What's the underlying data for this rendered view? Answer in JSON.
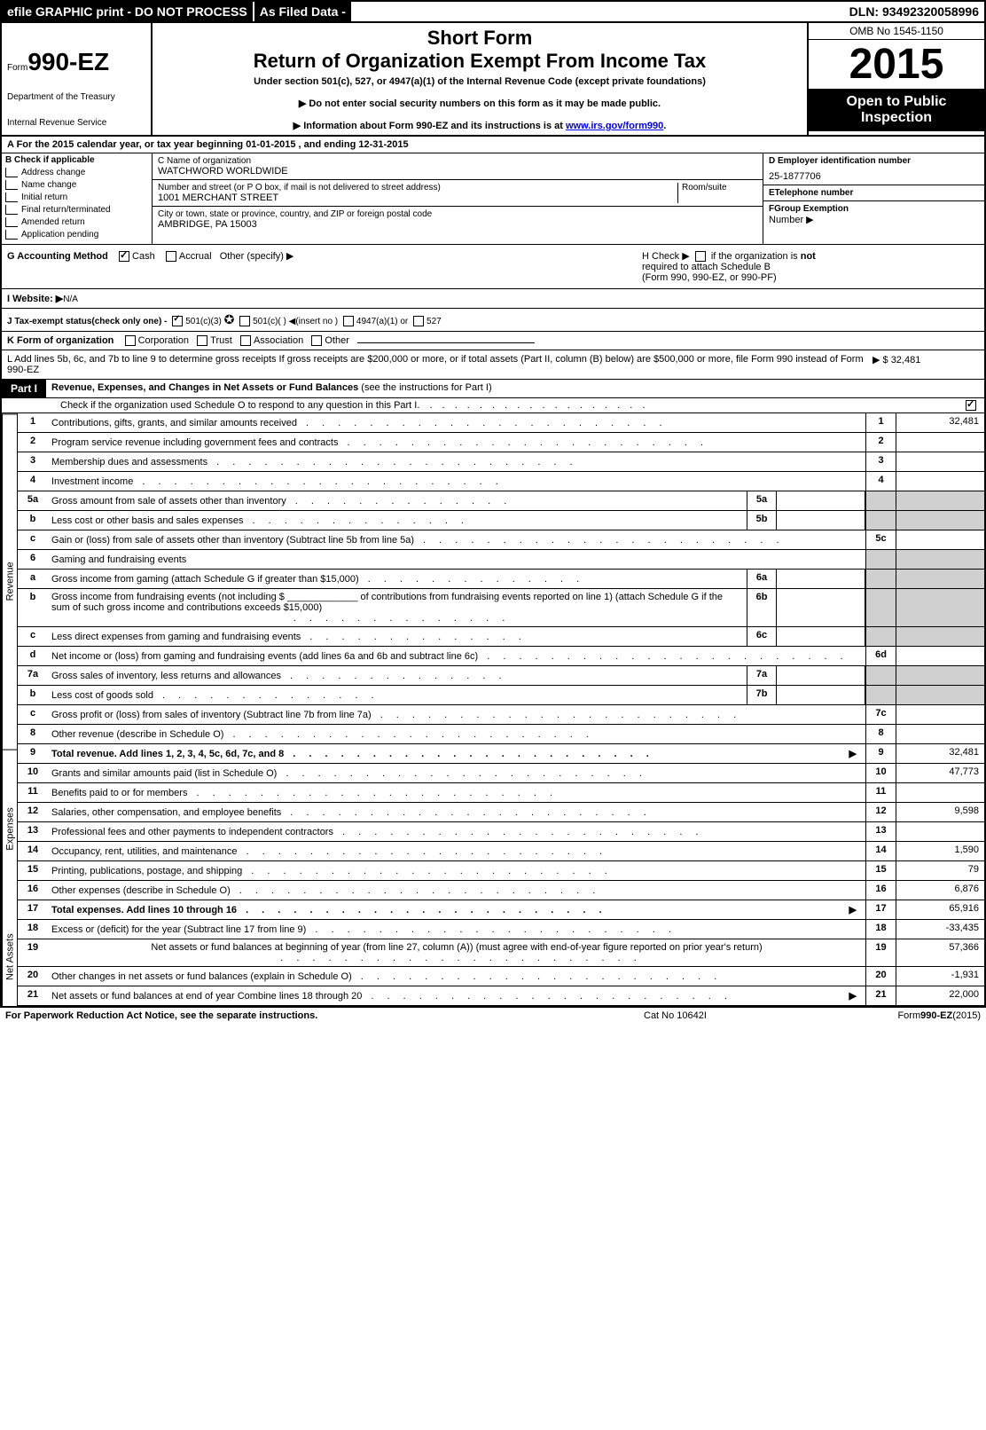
{
  "top": {
    "left": "efile GRAPHIC print - DO NOT PROCESS",
    "mid": "As Filed Data -",
    "dln": "DLN: 93492320058996"
  },
  "header": {
    "form_prefix": "Form",
    "form_number": "990-EZ",
    "dept1": "Department of the Treasury",
    "dept2": "Internal Revenue Service",
    "short": "Short Form",
    "title": "Return of Organization Exempt From Income Tax",
    "subtitle": "Under section 501(c), 527, or 4947(a)(1) of the Internal Revenue Code (except private foundations)",
    "note1": "▶ Do not enter social security numbers on this form as it may be made public.",
    "note2_pre": "▶ Information about Form 990-EZ and its instructions is at ",
    "note2_link": "www.irs.gov/form990",
    "note2_post": ".",
    "omb": "OMB No 1545-1150",
    "year": "2015",
    "inspect1": "Open to Public",
    "inspect2": "Inspection"
  },
  "lineA": "A  For the 2015 calendar year, or tax year beginning 01-01-2015              , and ending 12-31-2015",
  "colB": {
    "header": "B  Check if applicable",
    "items": [
      "Address change",
      "Name change",
      "Initial return",
      "Final return/terminated",
      "Amended return",
      "Application pending"
    ]
  },
  "colC": {
    "name_lbl": "C Name of organization",
    "name_val": "WATCHWORD WORLDWIDE",
    "addr_lbl": "Number and street (or P O box, if mail is not delivered to street address)",
    "room_lbl": "Room/suite",
    "addr_val": "1001 MERCHANT STREET",
    "city_lbl": "City or town, state or province, country, and ZIP or foreign postal code",
    "city_val": "AMBRIDGE, PA 15003"
  },
  "colD": {
    "d_lbl": "D Employer identification number",
    "d_val": "25-1877706",
    "e_lbl": "ETelephone number",
    "f_lbl": "FGroup Exemption",
    "f_lbl2": "Number    ▶"
  },
  "gh": {
    "g_lbl": "G Accounting Method",
    "g_cash": "Cash",
    "g_accr": "Accrual",
    "g_other": "Other (specify) ▶",
    "h_text1": "H  Check ▶ ",
    "h_text2": " if the organization is ",
    "h_not": "not",
    "h_text3": "required to attach Schedule B",
    "h_text4": "(Form 990, 990-EZ, or 990-PF)"
  },
  "lineI": {
    "lbl": "I Website: ▶",
    "val": "N/A"
  },
  "lineJ": "J Tax-exempt status(check only one) - ",
  "lineJ_opts": {
    "a": "501(c)(3)",
    "b": "501(c)(  ) ◀(insert no )",
    "c": "4947(a)(1) or",
    "d": "527"
  },
  "lineK": {
    "lbl": "K Form of organization",
    "opts": [
      "Corporation",
      "Trust",
      "Association",
      "Other"
    ]
  },
  "lineL": {
    "text": "L Add lines 5b, 6c, and 7b to line 9 to determine gross receipts If gross receipts are $200,000 or more, or if total assets (Part II, column (B) below) are $500,000 or more, file Form 990 instead of Form 990-EZ",
    "amt": "▶ $ 32,481"
  },
  "part1": {
    "label": "Part I",
    "title_b": "Revenue, Expenses, and Changes in Net Assets or Fund Balances",
    "title_rest": " (see the instructions for Part I)",
    "check": "Check if the organization used Schedule O to respond to any question in this Part I"
  },
  "sides": {
    "rev": "Revenue",
    "exp": "Expenses",
    "net": "Net Assets"
  },
  "rows": [
    {
      "n": "1",
      "d": "Contributions, gifts, grants, and similar amounts received",
      "rn": "1",
      "rv": "32,481"
    },
    {
      "n": "2",
      "d": "Program service revenue including government fees and contracts",
      "rn": "2",
      "rv": ""
    },
    {
      "n": "3",
      "d": "Membership dues and assessments",
      "rn": "3",
      "rv": ""
    },
    {
      "n": "4",
      "d": "Investment income",
      "rn": "4",
      "rv": ""
    },
    {
      "n": "5a",
      "d": "Gross amount from sale of assets other than inventory",
      "sn": "5a",
      "gray": true
    },
    {
      "n": "b",
      "d": "Less cost or other basis and sales expenses",
      "sn": "5b",
      "gray": true
    },
    {
      "n": "c",
      "d": "Gain or (loss) from sale of assets other than inventory (Subtract line 5b from line 5a)",
      "rn": "5c",
      "rv": ""
    },
    {
      "n": "6",
      "d": "Gaming and fundraising events",
      "gray": true,
      "noline": true
    },
    {
      "n": "a",
      "d": "Gross income from gaming (attach Schedule G if greater than $15,000)",
      "sn": "6a",
      "gray": true
    },
    {
      "n": "b",
      "d": "Gross income from fundraising events (not including $ _____________ of contributions from fundraising events reported on line 1) (attach Schedule G if the sum of such gross income and contributions exceeds $15,000)",
      "sn": "6b",
      "gray": true,
      "multi": true
    },
    {
      "n": "c",
      "d": "Less direct expenses from gaming and fundraising events",
      "sn": "6c",
      "gray": true
    },
    {
      "n": "d",
      "d": "Net income or (loss) from gaming and fundraising events (add lines 6a and 6b and subtract line 6c)",
      "rn": "6d",
      "rv": ""
    },
    {
      "n": "7a",
      "d": "Gross sales of inventory, less returns and allowances",
      "sn": "7a",
      "gray": true
    },
    {
      "n": "b",
      "d": "Less cost of goods sold",
      "sn": "7b",
      "gray": true
    },
    {
      "n": "c",
      "d": "Gross profit or (loss) from sales of inventory (Subtract line 7b from line 7a)",
      "rn": "7c",
      "rv": ""
    },
    {
      "n": "8",
      "d": "Other revenue (describe in Schedule O)",
      "rn": "8",
      "rv": ""
    },
    {
      "n": "9",
      "d": "Total revenue. Add lines 1, 2, 3, 4, 5c, 6d, 7c, and 8",
      "rn": "9",
      "rv": "32,481",
      "bold": true,
      "arrow": true
    },
    {
      "n": "10",
      "d": "Grants and similar amounts paid (list in Schedule O)",
      "rn": "10",
      "rv": "47,773"
    },
    {
      "n": "11",
      "d": "Benefits paid to or for members",
      "rn": "11",
      "rv": ""
    },
    {
      "n": "12",
      "d": "Salaries, other compensation, and employee benefits",
      "rn": "12",
      "rv": "9,598"
    },
    {
      "n": "13",
      "d": "Professional fees and other payments to independent contractors",
      "rn": "13",
      "rv": ""
    },
    {
      "n": "14",
      "d": "Occupancy, rent, utilities, and maintenance",
      "rn": "14",
      "rv": "1,590"
    },
    {
      "n": "15",
      "d": "Printing, publications, postage, and shipping",
      "rn": "15",
      "rv": "79"
    },
    {
      "n": "16",
      "d": "Other expenses (describe in Schedule O)",
      "rn": "16",
      "rv": "6,876"
    },
    {
      "n": "17",
      "d": "Total expenses. Add lines 10 through 16",
      "rn": "17",
      "rv": "65,916",
      "bold": true,
      "arrow": true
    },
    {
      "n": "18",
      "d": "Excess or (deficit) for the year (Subtract line 17 from line 9)",
      "rn": "18",
      "rv": "-33,435"
    },
    {
      "n": "19",
      "d": "Net assets or fund balances at beginning of year (from line 27, column (A)) (must agree with end-of-year figure reported on prior year's return)",
      "rn": "19",
      "rv": "57,366",
      "multi": true
    },
    {
      "n": "20",
      "d": "Other changes in net assets or fund balances (explain in Schedule O)",
      "rn": "20",
      "rv": "-1,931"
    },
    {
      "n": "21",
      "d": "Net assets or fund balances at end of year Combine lines 18 through 20",
      "rn": "21",
      "rv": "22,000",
      "arrow": true
    }
  ],
  "footer": {
    "f1": "For Paperwork Reduction Act Notice, see the separate instructions.",
    "f2": "Cat No 10642I",
    "f3": "Form 990-EZ(2015)"
  }
}
